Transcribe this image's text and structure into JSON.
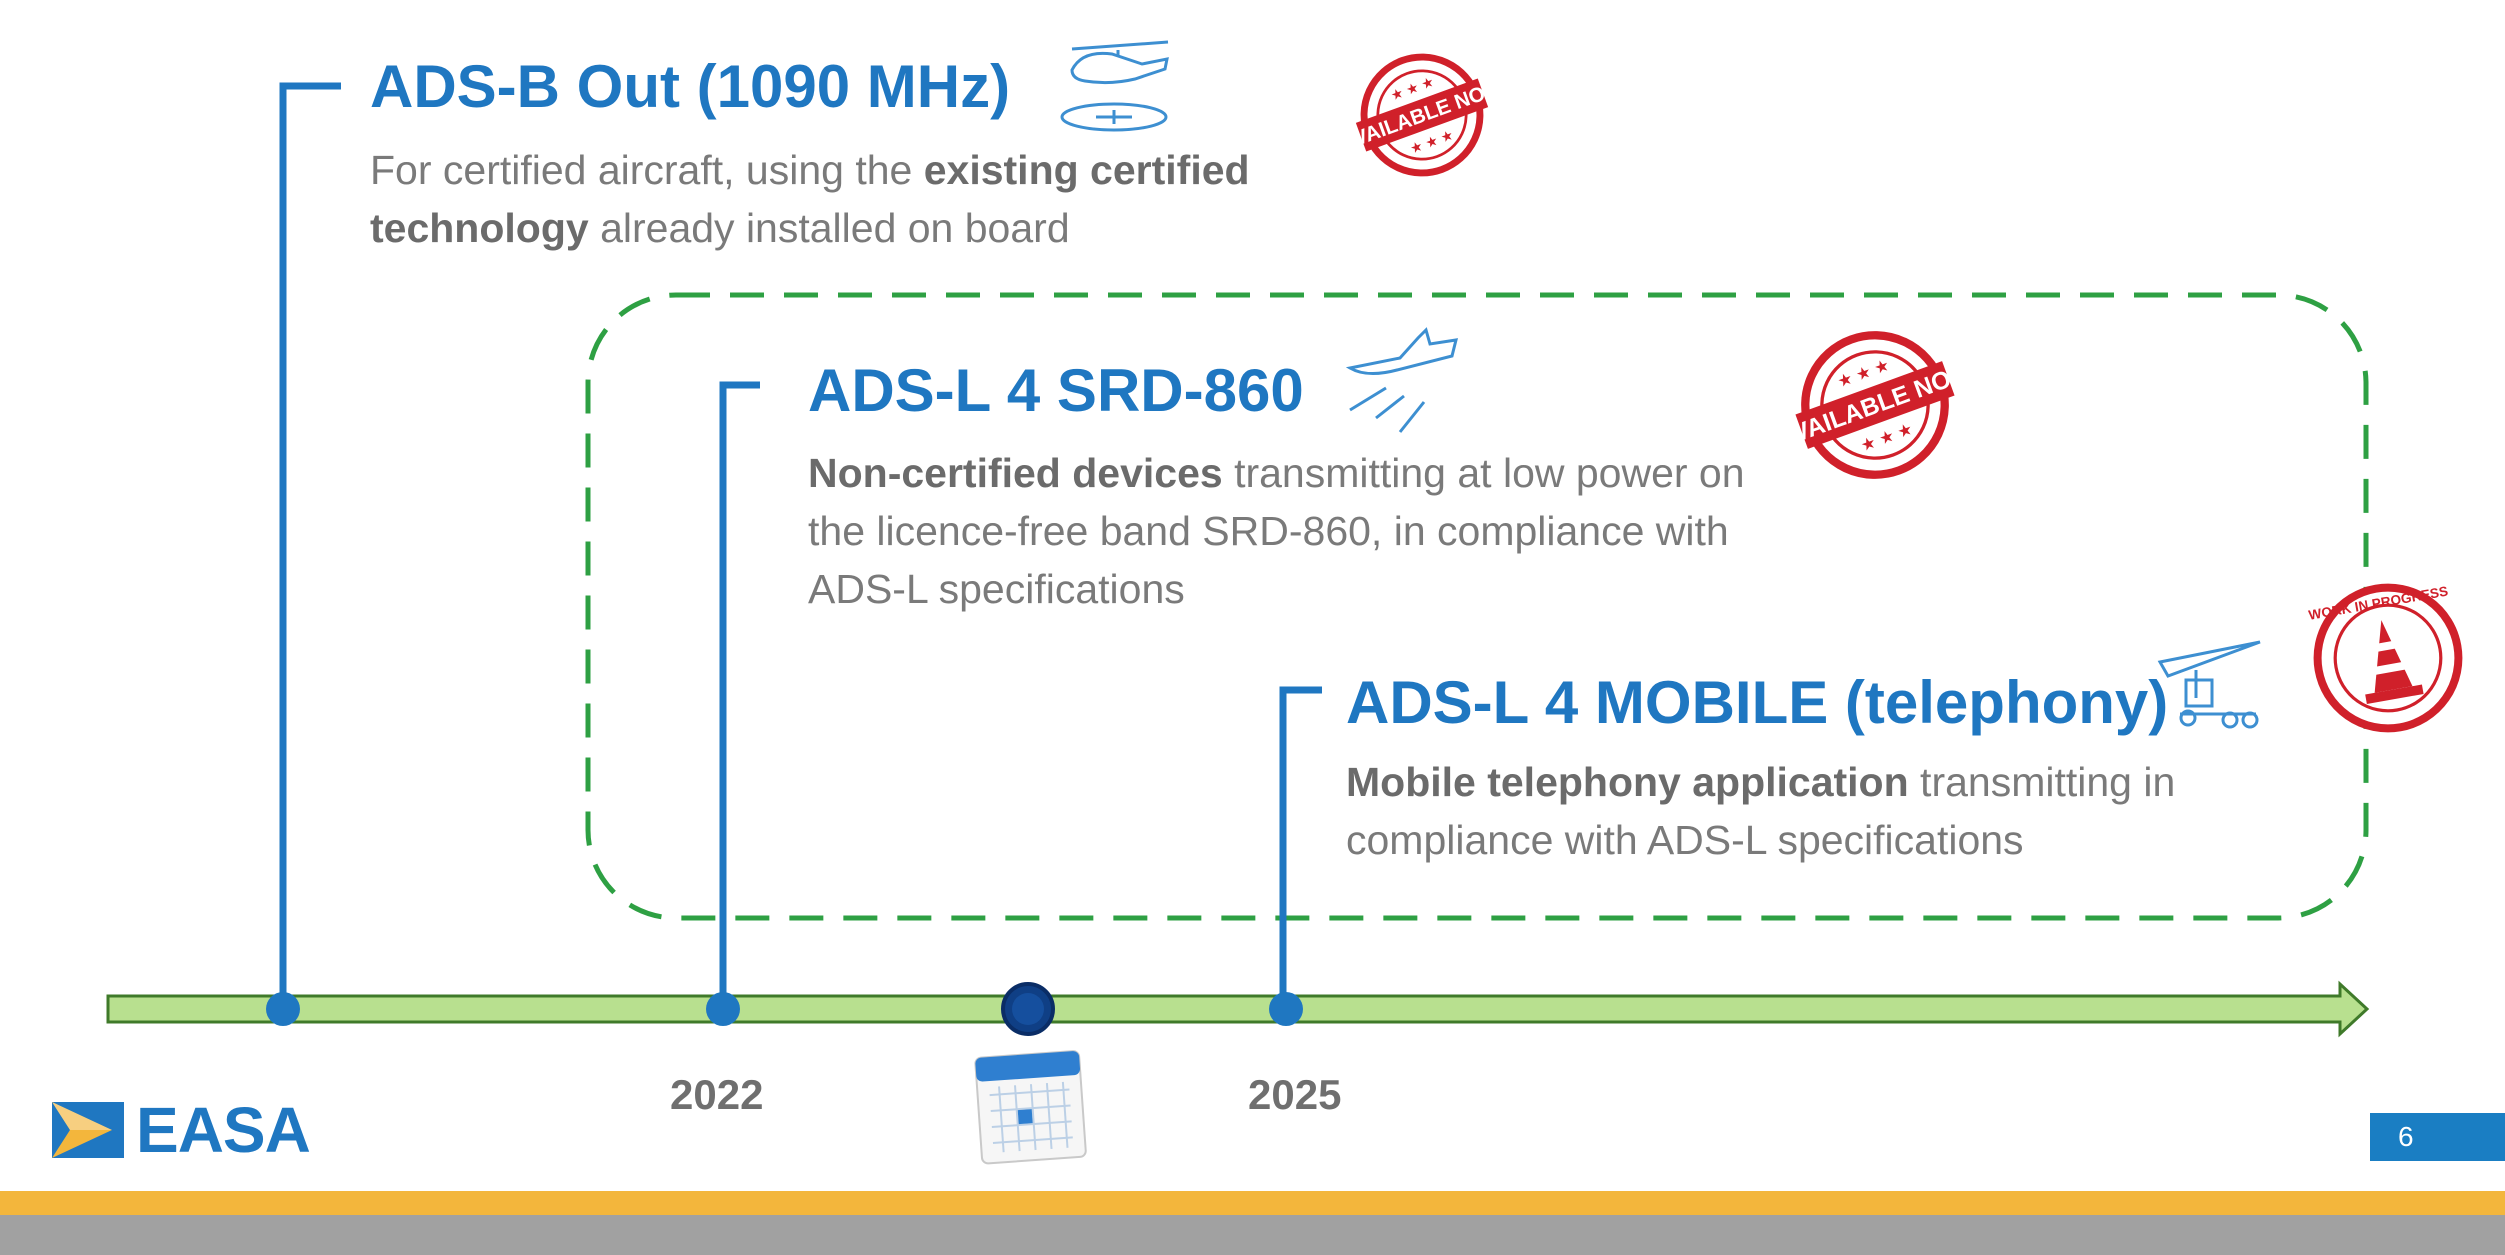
{
  "items": [
    {
      "title": "ADS-B Out (1090 MHz)",
      "desc_parts": [
        "For certified aircraft, using the ",
        "existing certified technology",
        " already installed on board"
      ],
      "icon": "helicopter-icon",
      "stamp": "available-now-stamp"
    },
    {
      "title": "ADS-L 4 SRD-860",
      "desc_parts": [
        "Non-certified devices",
        " transmitting at low power on the licence-free band SRD-860, in compliance with ADS-L specifications"
      ],
      "icon": "light-aircraft-icon",
      "stamp": "available-now-stamp"
    },
    {
      "title": "ADS-L 4 MOBILE (telephony)",
      "desc_parts": [
        "Mobile telephony application",
        " transmitting in compliance with ADS-L specifications"
      ],
      "icon": "microlight-trike-icon",
      "stamp": "work-in-progress-stamp"
    }
  ],
  "timeline": {
    "years": [
      "2022",
      "2025"
    ],
    "current_marker_icon": "calendar-icon"
  },
  "stamps": {
    "available_now": "AVAILABLE NOW",
    "work_in_progress": "WORK IN PROGRESS"
  },
  "footer": {
    "logo": "EASA",
    "page_number": "6"
  },
  "colors": {
    "title_blue": "#1f77c1",
    "timeline_green": "#b8e08f",
    "dashed_green": "#2ea043",
    "stamp_red": "#d0202a",
    "band_yellow": "#f3b63c",
    "band_grey": "#a1a1a1"
  }
}
